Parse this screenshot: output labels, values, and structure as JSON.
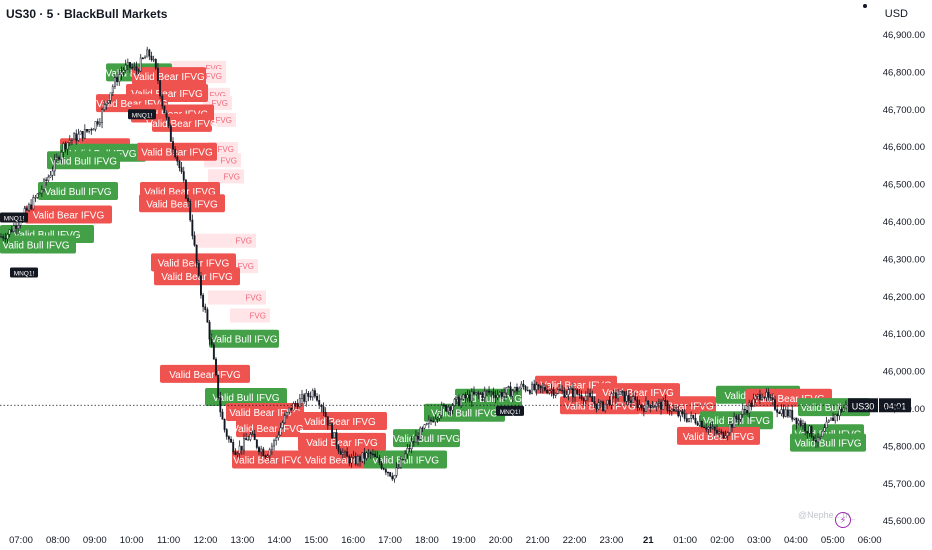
{
  "header": {
    "title": "US30 · 5 · BlackBull Markets",
    "currency": "USD"
  },
  "watermark": "@Nephe…m_",
  "chart_data": {
    "type": "candlestick",
    "symbol": "US30",
    "price_axis": {
      "ticks": [
        "46,900.00",
        "46,800.00",
        "46,700.00",
        "46,600.00",
        "46,500.00",
        "46,400.00",
        "46,300.00",
        "46,200.00",
        "46,100.00",
        "46,000.00",
        "45,900.00",
        "45,800.00",
        "45,700.00",
        "45,600.00"
      ],
      "tick_values": [
        46900,
        46800,
        46700,
        46600,
        46500,
        46400,
        46300,
        46200,
        46100,
        46000,
        45900,
        45800,
        45700,
        45600
      ],
      "ylim": [
        45580,
        46955
      ]
    },
    "time_axis": {
      "labels": [
        "07:00",
        "08:00",
        "09:00",
        "10:00",
        "11:00",
        "12:00",
        "13:00",
        "14:00",
        "15:00",
        "16:00",
        "17:00",
        "18:00",
        "19:00",
        "20:00",
        "21:00",
        "22:00",
        "23:00",
        "21",
        "01:00",
        "02:00",
        "03:00",
        "04:00",
        "05:00",
        "06:00"
      ],
      "bold_labels": [
        "21"
      ]
    },
    "last_price": {
      "label": "US30",
      "countdown": "04:01",
      "value": 45910
    },
    "price_path": [
      [
        0,
        46360
      ],
      [
        8,
        46370
      ],
      [
        16,
        46395
      ],
      [
        24,
        46420
      ],
      [
        32,
        46450
      ],
      [
        40,
        46480
      ],
      [
        48,
        46520
      ],
      [
        56,
        46560
      ],
      [
        62,
        46600
      ],
      [
        70,
        46620
      ],
      [
        78,
        46630
      ],
      [
        86,
        46640
      ],
      [
        94,
        46660
      ],
      [
        100,
        46680
      ],
      [
        106,
        46720
      ],
      [
        112,
        46760
      ],
      [
        118,
        46790
      ],
      [
        124,
        46810
      ],
      [
        130,
        46815
      ],
      [
        136,
        46805
      ],
      [
        142,
        46830
      ],
      [
        148,
        46850
      ],
      [
        152,
        46840
      ],
      [
        158,
        46780
      ],
      [
        162,
        46720
      ],
      [
        166,
        46680
      ],
      [
        170,
        46630
      ],
      [
        176,
        46580
      ],
      [
        182,
        46520
      ],
      [
        188,
        46450
      ],
      [
        192,
        46380
      ],
      [
        196,
        46300
      ],
      [
        200,
        46220
      ],
      [
        206,
        46150
      ],
      [
        212,
        46060
      ],
      [
        216,
        45980
      ],
      [
        220,
        45900
      ],
      [
        224,
        45850
      ],
      [
        230,
        45810
      ],
      [
        236,
        45790
      ],
      [
        242,
        45800
      ],
      [
        250,
        45830
      ],
      [
        258,
        45800
      ],
      [
        266,
        45780
      ],
      [
        274,
        45810
      ],
      [
        282,
        45860
      ],
      [
        290,
        45900
      ],
      [
        298,
        45920
      ],
      [
        306,
        45930
      ],
      [
        314,
        45950
      ],
      [
        322,
        45910
      ],
      [
        330,
        45850
      ],
      [
        338,
        45800
      ],
      [
        346,
        45770
      ],
      [
        354,
        45760
      ],
      [
        362,
        45770
      ],
      [
        370,
        45780
      ],
      [
        378,
        45760
      ],
      [
        386,
        45740
      ],
      [
        394,
        45720
      ],
      [
        402,
        45760
      ],
      [
        410,
        45800
      ],
      [
        418,
        45830
      ],
      [
        426,
        45850
      ],
      [
        434,
        45880
      ],
      [
        442,
        45900
      ],
      [
        450,
        45910
      ],
      [
        458,
        45920
      ],
      [
        466,
        45930
      ],
      [
        474,
        45935
      ],
      [
        482,
        45940
      ],
      [
        490,
        45945
      ],
      [
        498,
        45940
      ],
      [
        506,
        45945
      ],
      [
        514,
        45950
      ],
      [
        522,
        45960
      ],
      [
        530,
        45955
      ],
      [
        538,
        45950
      ],
      [
        546,
        45955
      ],
      [
        554,
        45950
      ],
      [
        562,
        45945
      ],
      [
        570,
        45945
      ],
      [
        578,
        45940
      ],
      [
        586,
        45935
      ],
      [
        594,
        45915
      ],
      [
        602,
        45905
      ],
      [
        610,
        45925
      ],
      [
        618,
        45940
      ],
      [
        626,
        45930
      ],
      [
        634,
        45920
      ],
      [
        642,
        45905
      ],
      [
        650,
        45915
      ],
      [
        658,
        45910
      ],
      [
        666,
        45910
      ],
      [
        674,
        45890
      ],
      [
        682,
        45880
      ],
      [
        690,
        45875
      ],
      [
        698,
        45870
      ],
      [
        706,
        45855
      ],
      [
        714,
        45840
      ],
      [
        722,
        45830
      ],
      [
        730,
        45855
      ],
      [
        738,
        45880
      ],
      [
        746,
        45900
      ],
      [
        754,
        45920
      ],
      [
        762,
        45945
      ],
      [
        770,
        45920
      ],
      [
        778,
        45900
      ],
      [
        786,
        45890
      ],
      [
        794,
        45880
      ],
      [
        802,
        45860
      ],
      [
        810,
        45840
      ],
      [
        818,
        45810
      ],
      [
        826,
        45850
      ],
      [
        834,
        45880
      ],
      [
        842,
        45900
      ],
      [
        848,
        45910
      ]
    ],
    "ifvg_boxes": [
      {
        "label": "Valid Bull IFVG",
        "kind": "bull",
        "x": [
          106,
          172
        ],
        "price": 46800
      },
      {
        "label": "Valid Bear IFVG",
        "kind": "bear",
        "x": [
          132,
          206
        ],
        "price": 46790
      },
      {
        "label": "Valid Bear IFVG",
        "kind": "bear",
        "x": [
          126,
          208
        ],
        "price": 46745
      },
      {
        "label": "Valid Bear IFVG",
        "kind": "bear",
        "x": [
          96,
          168
        ],
        "price": 46718
      },
      {
        "label": "Valid Bear IFVG",
        "kind": "bear",
        "x": [
          131,
          214
        ],
        "price": 46690
      },
      {
        "label": "Valid Bear IFVG",
        "kind": "bear",
        "x": [
          152,
          212
        ],
        "price": 46665
      },
      {
        "label": "Valid Bear IFVG",
        "kind": "bear",
        "x": [
          60,
          130
        ],
        "price": 46600
      },
      {
        "label": "Valid Bull IFVG",
        "kind": "bull",
        "x": [
          60,
          146
        ],
        "price": 46585
      },
      {
        "label": "Valid Bear IFVG",
        "kind": "bear",
        "x": [
          137,
          217
        ],
        "price": 46588
      },
      {
        "label": "Valid Bull IFVG",
        "kind": "bull",
        "x": [
          47,
          120
        ],
        "price": 46565
      },
      {
        "label": "Valid Bull IFVG",
        "kind": "bull",
        "x": [
          38,
          118
        ],
        "price": 46483
      },
      {
        "label": "Valid Bear IFVG",
        "kind": "bear",
        "x": [
          140,
          220
        ],
        "price": 46483
      },
      {
        "label": "Valid Bear IFVG",
        "kind": "bear",
        "x": [
          139,
          225
        ],
        "price": 46450
      },
      {
        "label": "Valid Bear IFVG",
        "kind": "bear",
        "x": [
          25,
          112
        ],
        "price": 46420
      },
      {
        "label": "Valid Bull IFVG",
        "kind": "bull",
        "x": [
          0,
          94
        ],
        "price": 46368
      },
      {
        "label": "Valid Bull IFVG",
        "kind": "bull",
        "x": [
          0,
          76
        ],
        "price": 46340
      },
      {
        "label": "Valid Bull IFVG",
        "kind": "bull",
        "x": [
          0,
          72
        ],
        "price": 46340
      },
      {
        "label": "Valid Bear IFVG",
        "kind": "bear",
        "x": [
          151,
          236
        ],
        "price": 46292
      },
      {
        "label": "Valid Bear IFVG",
        "kind": "bear",
        "x": [
          154,
          240
        ],
        "price": 46255
      },
      {
        "label": "Valid Bull IFVG",
        "kind": "bull",
        "x": [
          209,
          279
        ],
        "price": 46088
      },
      {
        "label": "Valid Bear IFVG",
        "kind": "bear",
        "x": [
          160,
          250
        ],
        "price": 45994
      },
      {
        "label": "Valid Bull IFVG",
        "kind": "bull",
        "x": [
          205,
          287
        ],
        "price": 45932
      },
      {
        "label": "Valid Bear IFVG",
        "kind": "bear",
        "x": [
          226,
          304
        ],
        "price": 45892
      },
      {
        "label": "Valid Bear IFVG",
        "kind": "bear",
        "x": [
          293,
          387
        ],
        "price": 45868
      },
      {
        "label": "Valid Bear IFVG",
        "kind": "bear",
        "x": [
          236,
          300
        ],
        "price": 45849
      },
      {
        "label": "Valid Bear IFVG",
        "kind": "bear",
        "x": [
          298,
          386
        ],
        "price": 45812
      },
      {
        "label": "Valid Bear IFVG",
        "kind": "bear",
        "x": [
          232,
          306
        ],
        "price": 45765
      },
      {
        "label": "Valid Bear IFVG",
        "kind": "bear",
        "x": [
          301,
          380
        ],
        "price": 45765
      },
      {
        "label": "Valid Bull IFVG",
        "kind": "bull",
        "x": [
          393,
          460
        ],
        "price": 45822
      },
      {
        "label": "Valid Bull IFVG",
        "kind": "bull",
        "x": [
          364,
          447
        ],
        "price": 45765
      },
      {
        "label": "Valid Bull IFVG",
        "kind": "bull",
        "x": [
          424,
          505
        ],
        "price": 45890
      },
      {
        "label": "Valid Bull IFVG",
        "kind": "bull",
        "x": [
          455,
          522
        ],
        "price": 45930
      },
      {
        "label": "Valid Bear IFVG",
        "kind": "bear",
        "x": [
          535,
          617
        ],
        "price": 45965
      },
      {
        "label": "Valid Bear IFVG",
        "kind": "bear",
        "x": [
          596,
          680
        ],
        "price": 45945
      },
      {
        "label": "Valid Bear IFVG",
        "kind": "bear",
        "x": [
          560,
          640
        ],
        "price": 45910
      },
      {
        "label": "Valid Bear IFVG",
        "kind": "bear",
        "x": [
          640,
          716
        ],
        "price": 45910
      },
      {
        "label": "Valid Bull IFVG",
        "kind": "bull",
        "x": [
          716,
          800
        ],
        "price": 45938
      },
      {
        "label": "Valid Bear IFVG",
        "kind": "bear",
        "x": [
          746,
          832
        ],
        "price": 45930
      },
      {
        "label": "Valid Bull IFVG",
        "kind": "bull",
        "x": [
          798,
          870
        ],
        "price": 45905
      },
      {
        "label": "Valid Bull IFVG",
        "kind": "bull",
        "x": [
          700,
          773
        ],
        "price": 45870
      },
      {
        "label": "Valid Bear IFVG",
        "kind": "bear",
        "x": [
          677,
          760
        ],
        "price": 45828
      },
      {
        "label": "Valid Bull IFVG",
        "kind": "bull",
        "x": [
          792,
          864
        ],
        "price": 45835
      },
      {
        "label": "Valid Bull IFVG",
        "kind": "bull",
        "x": [
          790,
          866
        ],
        "price": 45810
      }
    ],
    "fvg_boxes": [
      {
        "label": "FVG",
        "x": [
          170,
          226
        ],
        "price": 46812
      },
      {
        "label": "FVG",
        "x": [
          192,
          226
        ],
        "price": 46790
      },
      {
        "label": "FVG",
        "x": [
          198,
          230
        ],
        "price": 46740
      },
      {
        "label": "FVG",
        "x": [
          203,
          232
        ],
        "price": 46718
      },
      {
        "label": "FVG",
        "x": [
          205,
          236
        ],
        "price": 46673
      },
      {
        "label": "FVG",
        "x": [
          208,
          238
        ],
        "price": 46595
      },
      {
        "label": "FVG",
        "x": [
          204,
          241
        ],
        "price": 46565
      },
      {
        "label": "FVG",
        "x": [
          208,
          244
        ],
        "price": 46522
      },
      {
        "label": "FVG",
        "x": [
          195,
          256
        ],
        "price": 46350
      },
      {
        "label": "FVG",
        "x": [
          220,
          258
        ],
        "price": 46282
      },
      {
        "label": "FVG",
        "x": [
          208,
          266
        ],
        "price": 46198
      },
      {
        "label": "FVG",
        "x": [
          230,
          270
        ],
        "price": 46150
      }
    ],
    "tags": [
      {
        "label": "MNQ1!",
        "x": 128,
        "price": 46688
      },
      {
        "label": "MNQ1!",
        "x": 0,
        "price": 46412
      },
      {
        "label": "MNQ1!",
        "x": 10,
        "price": 46265
      },
      {
        "label": "MNQ1!",
        "x": 496,
        "price": 45895
      }
    ]
  }
}
